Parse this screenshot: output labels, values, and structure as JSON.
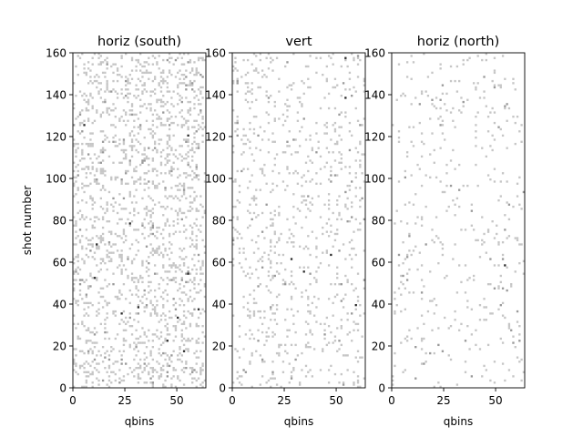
{
  "chart_data": [
    {
      "type": "heatmap",
      "title": "horiz (south)",
      "xlabel": "qbins",
      "ylabel": "shot number",
      "xlim": [
        0,
        64
      ],
      "ylim": [
        0,
        160
      ],
      "xticks": [
        0,
        25,
        50
      ],
      "yticks": [
        0,
        20,
        40,
        60,
        80,
        100,
        120,
        140,
        160
      ],
      "rows": 160,
      "cols": 64,
      "fill_density": 0.17,
      "values": "binary-ish occupancy: mostly empty with scattered light-grey cells; a few dark cells",
      "dark_cells": [
        [
          27,
          78
        ],
        [
          31,
          38
        ],
        [
          55,
          54
        ],
        [
          23,
          35
        ],
        [
          11,
          68
        ],
        [
          10,
          52
        ],
        [
          55,
          120
        ],
        [
          60,
          37
        ],
        [
          53,
          17
        ],
        [
          5,
          125
        ],
        [
          45,
          22
        ],
        [
          50,
          33
        ]
      ]
    },
    {
      "type": "heatmap",
      "title": "vert",
      "xlabel": "qbins",
      "ylabel": "",
      "xlim": [
        0,
        64
      ],
      "ylim": [
        0,
        160
      ],
      "xticks": [
        0,
        25,
        50
      ],
      "yticks": [
        0,
        20,
        40,
        60,
        80,
        100,
        120,
        140,
        160
      ],
      "rows": 160,
      "cols": 64,
      "fill_density": 0.08,
      "dark_cells": [
        [
          28,
          61
        ],
        [
          34,
          55
        ],
        [
          54,
          138
        ],
        [
          59,
          39
        ],
        [
          47,
          63
        ],
        [
          54,
          157
        ]
      ]
    },
    {
      "type": "heatmap",
      "title": "horiz (north)",
      "xlabel": "qbins",
      "ylabel": "",
      "xlim": [
        0,
        64
      ],
      "ylim": [
        0,
        160
      ],
      "xticks": [
        0,
        25,
        50
      ],
      "yticks": [
        0,
        20,
        40,
        60,
        80,
        100,
        120,
        140,
        160
      ],
      "rows": 160,
      "cols": 64,
      "fill_density": 0.045,
      "dark_cells": [
        [
          54,
          58
        ]
      ]
    }
  ],
  "colors": {
    "empty": "#ffffff",
    "light": "#c6c6c6",
    "mid": "#9a9a9a",
    "dark": "#2a2a2a"
  }
}
